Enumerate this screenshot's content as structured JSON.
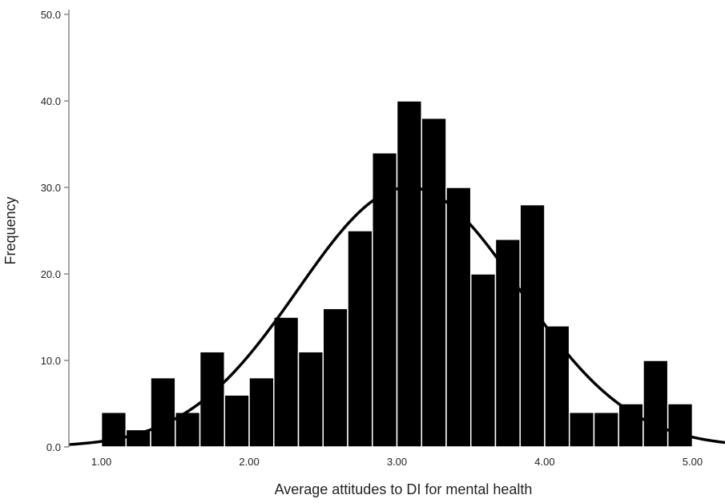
{
  "chart_data": {
    "type": "bar",
    "subtype": "histogram",
    "title": "",
    "xlabel": "Average attitudes to DI for mental health",
    "ylabel": "Frequency",
    "xlim": [
      0.78,
      5.22
    ],
    "ylim": [
      0,
      50
    ],
    "bin_width": 0.1667,
    "x_ticks": [
      "1.00",
      "2.00",
      "3.00",
      "4.00",
      "5.00"
    ],
    "x_tick_values": [
      1,
      2,
      3,
      4,
      5
    ],
    "y_ticks": [
      "0.0",
      "10.0",
      "20.0",
      "30.0",
      "40.0",
      "50.0"
    ],
    "y_tick_values": [
      0,
      10,
      20,
      30,
      40,
      50
    ],
    "bins": [
      {
        "start": 1.0,
        "end": 1.1667,
        "count": 4
      },
      {
        "start": 1.1667,
        "end": 1.3333,
        "count": 2
      },
      {
        "start": 1.3333,
        "end": 1.5,
        "count": 8
      },
      {
        "start": 1.5,
        "end": 1.6667,
        "count": 4
      },
      {
        "start": 1.6667,
        "end": 1.8333,
        "count": 11
      },
      {
        "start": 1.8333,
        "end": 2.0,
        "count": 6
      },
      {
        "start": 2.0,
        "end": 2.1667,
        "count": 8
      },
      {
        "start": 2.1667,
        "end": 2.3333,
        "count": 15
      },
      {
        "start": 2.3333,
        "end": 2.5,
        "count": 11
      },
      {
        "start": 2.5,
        "end": 2.6667,
        "count": 16
      },
      {
        "start": 2.6667,
        "end": 2.8333,
        "count": 25
      },
      {
        "start": 2.8333,
        "end": 3.0,
        "count": 34
      },
      {
        "start": 3.0,
        "end": 3.1667,
        "count": 40
      },
      {
        "start": 3.1667,
        "end": 3.3333,
        "count": 38
      },
      {
        "start": 3.3333,
        "end": 3.5,
        "count": 30
      },
      {
        "start": 3.5,
        "end": 3.6667,
        "count": 20
      },
      {
        "start": 3.6667,
        "end": 3.8333,
        "count": 24
      },
      {
        "start": 3.8333,
        "end": 4.0,
        "count": 28
      },
      {
        "start": 4.0,
        "end": 4.1667,
        "count": 14
      },
      {
        "start": 4.1667,
        "end": 4.3333,
        "count": 4
      },
      {
        "start": 4.3333,
        "end": 4.5,
        "count": 4
      },
      {
        "start": 4.5,
        "end": 4.6667,
        "count": 5
      },
      {
        "start": 4.6667,
        "end": 4.8333,
        "count": 10
      },
      {
        "start": 4.8333,
        "end": 5.0,
        "count": 5
      }
    ],
    "normal_curve": {
      "mean": 3.08,
      "sd": 0.75,
      "peak": 30
    },
    "grid": false,
    "legend": "none",
    "colors": {
      "bar": "#000000",
      "bar_edge": "#ffffff",
      "curve": "#000000",
      "axis": "#888888"
    }
  }
}
